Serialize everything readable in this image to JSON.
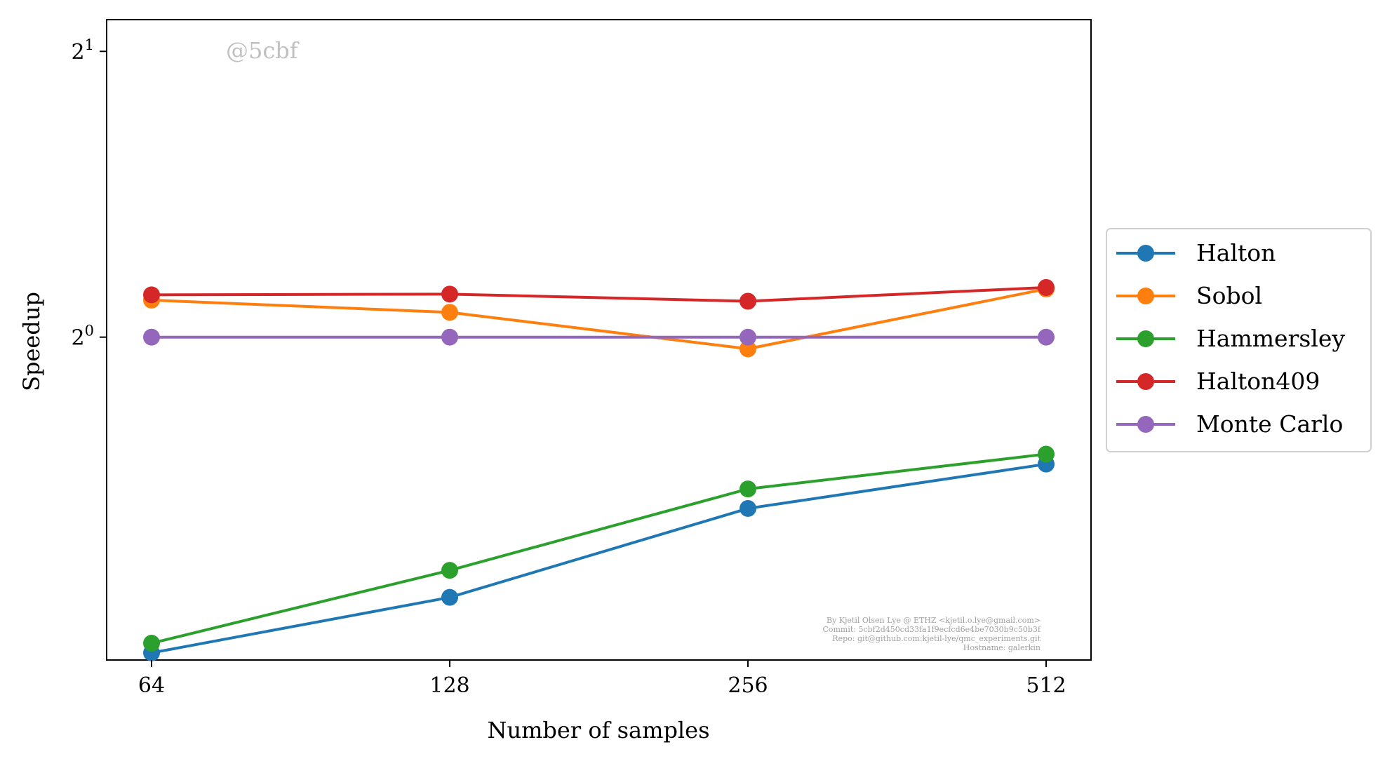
{
  "chart_data": {
    "type": "line",
    "x_scale": "log2",
    "y_scale": "log2",
    "categories": [
      "64",
      "128",
      "256",
      "512"
    ],
    "x": [
      64,
      128,
      256,
      512
    ],
    "xlabel": "Number of samples",
    "ylabel": "Speedup",
    "ylim": [
      0.457,
      2.16
    ],
    "yticks": [
      {
        "value": 1,
        "base": "2",
        "exp": "0"
      },
      {
        "value": 2,
        "base": "2",
        "exp": "1"
      }
    ],
    "grid": false,
    "legend_position": "outside-right",
    "series": [
      {
        "name": "Halton",
        "color": "#1f77b4",
        "values": [
          0.465,
          0.532,
          0.66,
          0.735
        ]
      },
      {
        "name": "Sobol",
        "color": "#ff7f0e",
        "values": [
          1.094,
          1.062,
          0.972,
          1.124
        ]
      },
      {
        "name": "Hammersley",
        "color": "#2ca02c",
        "values": [
          0.476,
          0.568,
          0.692,
          0.753
        ]
      },
      {
        "name": "Halton409",
        "color": "#d62728",
        "values": [
          1.108,
          1.11,
          1.091,
          1.128
        ]
      },
      {
        "name": "Monte Carlo",
        "color": "#9467bd",
        "values": [
          1.0,
          1.0,
          1.0,
          1.0
        ]
      }
    ],
    "watermark": "@5cbf",
    "credits": [
      "By Kjetil Olsen Lye @ ETHZ <kjetil.o.lye@gmail.com>",
      "Commit: 5cbf2d450cd33fa1f9ecfcd6e4be7030b9c50b3f",
      "Repo: git@github.com:kjetil-lye/qmc_experiments.git",
      "Hostname: galerkin"
    ]
  }
}
